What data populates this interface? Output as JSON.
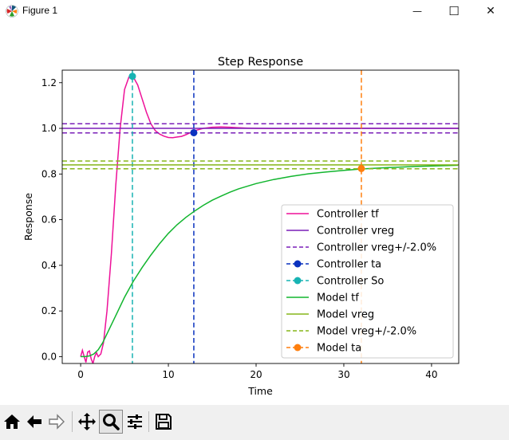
{
  "window": {
    "title": "Figure 1",
    "minimize_glyph": "—",
    "maximize_glyph": "☐",
    "close_glyph": "✕"
  },
  "chart_data": {
    "type": "line",
    "title": "Step Response",
    "xlabel": "Time",
    "ylabel": "Response",
    "xlim": [
      -2.1,
      43.1
    ],
    "ylim": [
      -0.03,
      1.255
    ],
    "x_ticks": [
      0,
      10,
      20,
      30,
      40
    ],
    "y_ticks": [
      0.0,
      0.2,
      0.4,
      0.6,
      0.8,
      1.0,
      1.2
    ],
    "x_tick_labels": [
      "0",
      "10",
      "20",
      "30",
      "40"
    ],
    "y_tick_labels": [
      "0.0",
      "0.2",
      "0.4",
      "0.6",
      "0.8",
      "1.0",
      "1.2"
    ],
    "grid": false,
    "legend_position": "lower-right",
    "series": [
      {
        "name": "Controller  tf",
        "kind": "curve",
        "color": "#ee1199",
        "style": "solid",
        "x": [
          0,
          0.2,
          0.4,
          0.6,
          0.8,
          1.0,
          1.2,
          1.4,
          1.6,
          1.8,
          2.0,
          2.3,
          2.6,
          3.0,
          3.5,
          4.0,
          4.5,
          5.0,
          5.5,
          6.0,
          6.5,
          7.0,
          7.5,
          8.0,
          8.5,
          9.0,
          9.5,
          10.0,
          10.5,
          11.0,
          11.5,
          12.0,
          12.5,
          13.0,
          14.0,
          15.0,
          16.0,
          17.0,
          18.0,
          19.0,
          20.0,
          22.0,
          25.0,
          30.0,
          35.0,
          40.0,
          43.0
        ],
        "y": [
          0.0,
          0.028,
          0.0,
          -0.025,
          0.02,
          0.025,
          -0.01,
          -0.03,
          0.0,
          0.018,
          0.0,
          0.012,
          0.06,
          0.2,
          0.45,
          0.75,
          1.0,
          1.17,
          1.225,
          1.225,
          1.19,
          1.13,
          1.07,
          1.02,
          0.99,
          0.975,
          0.966,
          0.96,
          0.959,
          0.962,
          0.965,
          0.972,
          0.981,
          0.99,
          1.0,
          1.005,
          1.006,
          1.005,
          1.003,
          1.001,
          1.0,
          0.999,
          1.0,
          1.0,
          1.0,
          1.0,
          1.0
        ]
      },
      {
        "name": "Controller  vreg",
        "kind": "hline",
        "y": 1.0,
        "color": "#7a1fb8",
        "style": "solid"
      },
      {
        "name": "Controller  vreg+/-2.0%",
        "kind": "hband",
        "y": [
          1.02,
          0.98
        ],
        "color": "#7a1fb8",
        "style": "dashed"
      },
      {
        "name": "Controller  ta",
        "kind": "vline",
        "x": 12.9,
        "y": 0.981,
        "color": "#0a32bf",
        "style": "dashed",
        "marker": true
      },
      {
        "name": "Controller  So",
        "kind": "vline",
        "x": 5.9,
        "y": 1.228,
        "color": "#17b3b3",
        "style": "dashed",
        "marker": true
      },
      {
        "name": "Model  tf",
        "kind": "curve",
        "color": "#11b52e",
        "style": "solid",
        "x": [
          0,
          0.5,
          1.0,
          1.5,
          2.0,
          2.5,
          3.0,
          4.0,
          5.0,
          6.0,
          7.0,
          8.0,
          9.0,
          10.0,
          11.0,
          12.0,
          13.0,
          14.0,
          15.0,
          16.0,
          17.0,
          18.0,
          20.0,
          22.0,
          24.0,
          26.0,
          28.0,
          30.0,
          32.0,
          35.0,
          38.0,
          40.0,
          43.0
        ],
        "y": [
          0.0,
          0.0,
          0.003,
          0.012,
          0.03,
          0.06,
          0.1,
          0.18,
          0.26,
          0.33,
          0.39,
          0.445,
          0.495,
          0.54,
          0.578,
          0.61,
          0.638,
          0.663,
          0.685,
          0.703,
          0.72,
          0.735,
          0.758,
          0.776,
          0.79,
          0.801,
          0.809,
          0.816,
          0.822,
          0.828,
          0.833,
          0.835,
          0.838
        ]
      },
      {
        "name": "Model  vreg",
        "kind": "hline",
        "y": 0.84,
        "color": "#85b51a",
        "style": "solid"
      },
      {
        "name": "Model  vreg+/-2.0%",
        "kind": "hband",
        "y": [
          0.857,
          0.823
        ],
        "color": "#85b51a",
        "style": "dashed"
      },
      {
        "name": "Model  ta",
        "kind": "vline",
        "x": 32.0,
        "y": 0.824,
        "color": "#ff7f0e",
        "style": "dashed",
        "marker": true
      }
    ]
  },
  "toolbar": {
    "tools": [
      {
        "name": "home-button",
        "icon": "home-icon",
        "active": false
      },
      {
        "name": "back-button",
        "icon": "arrow-left-icon",
        "active": false
      },
      {
        "name": "forward-button",
        "icon": "arrow-right-icon",
        "active": false
      },
      {
        "name": "pan-button",
        "icon": "move-icon",
        "active": false
      },
      {
        "name": "zoom-button",
        "icon": "magnifier-icon",
        "active": true
      },
      {
        "name": "subplots-button",
        "icon": "sliders-icon",
        "active": false
      },
      {
        "name": "save-button",
        "icon": "floppy-disk-icon",
        "active": false
      }
    ]
  }
}
